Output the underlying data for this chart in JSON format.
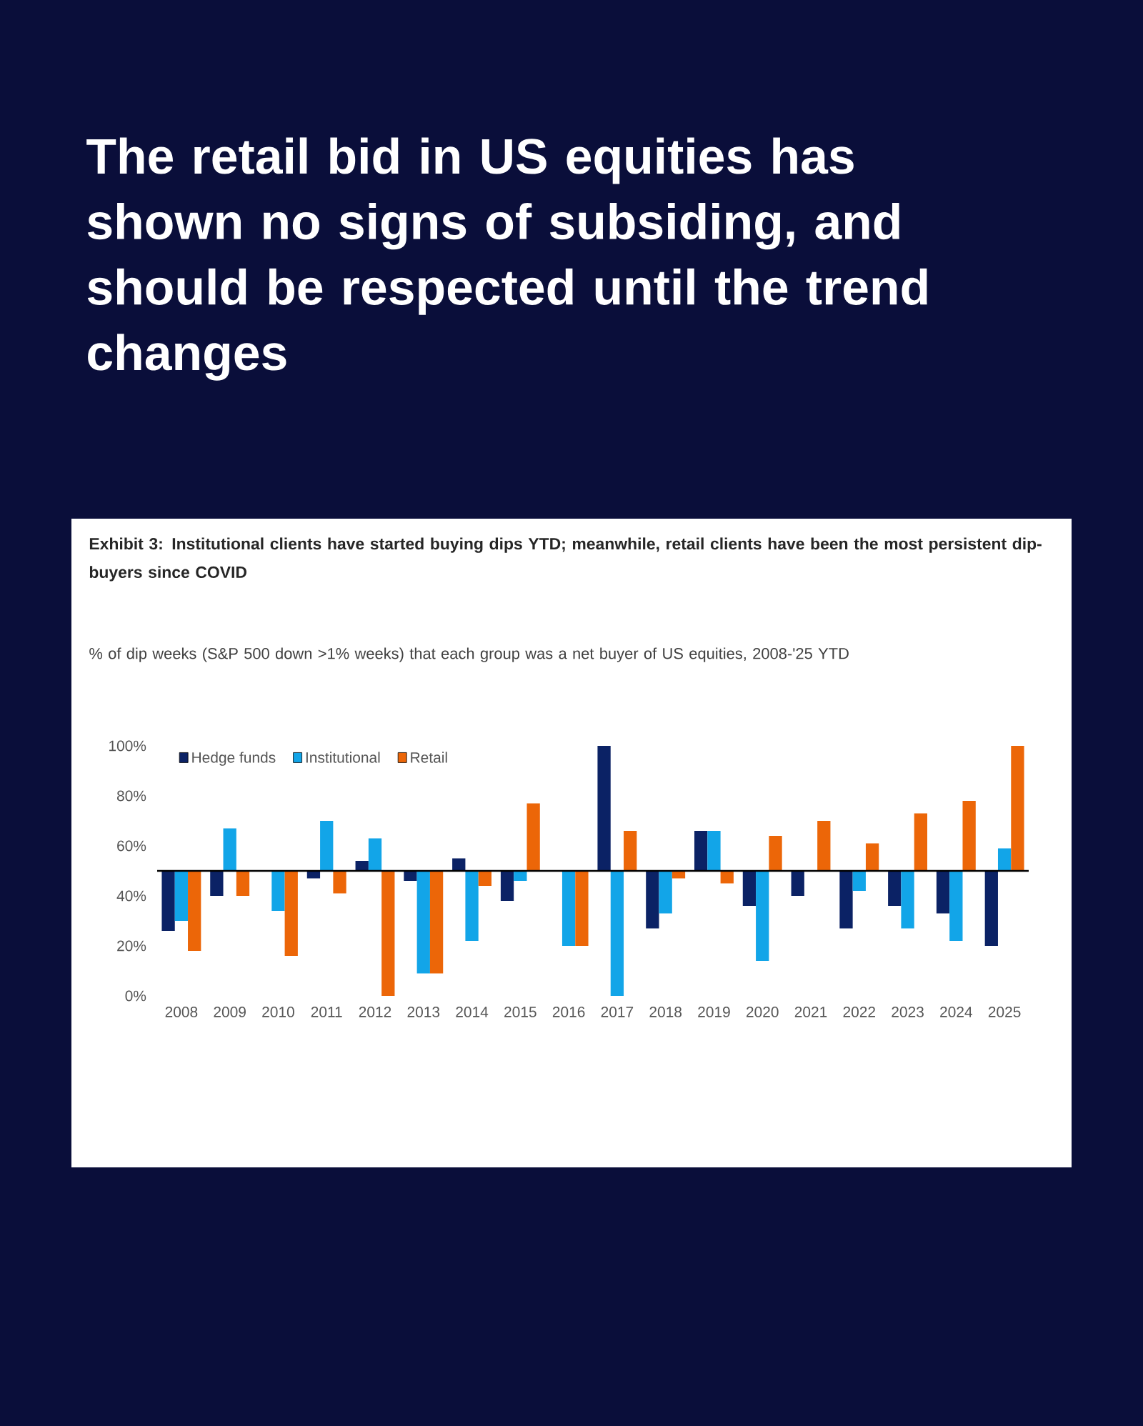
{
  "chart_data": {
    "type": "bar",
    "title": "The retail bid in US equities has shown no signs of subsiding, and should be respected until the trend changes",
    "subtitle": "Exhibit 3: Institutional clients have started buying dips YTD; meanwhile, retail clients have been the most persistent dip-buyers since COVID",
    "annotations": [
      "% of dip weeks (S&P 500 down >1% weeks) that each group was a net buyer of US equities, 2008-'25 YTD"
    ],
    "categories": [
      "2008",
      "2009",
      "2010",
      "2011",
      "2012",
      "2013",
      "2014",
      "2015",
      "2016",
      "2017",
      "2018",
      "2019",
      "2020",
      "2021",
      "2022",
      "2023",
      "2024",
      "2025"
    ],
    "series": [
      {
        "name": "Hedge funds",
        "color": "#0b2265",
        "base": [
          50,
          50,
          null,
          50,
          50,
          50,
          50,
          50,
          null,
          50,
          50,
          50,
          50,
          50,
          50,
          50,
          50,
          50
        ],
        "values": [
          -24,
          -10,
          null,
          -3,
          4,
          -4,
          5,
          -12,
          null,
          50,
          -23,
          16,
          -14,
          -10,
          -23,
          -14,
          -17,
          -30
        ]
      },
      {
        "name": "Institutional",
        "color": "#12a5e8",
        "base": [
          50,
          50,
          50,
          50,
          50,
          50,
          50,
          50,
          50,
          50,
          50,
          50,
          50,
          null,
          50,
          50,
          50,
          50
        ],
        "values": [
          -20,
          17,
          -16,
          20,
          13,
          -41,
          -28,
          -4,
          -30,
          -50,
          -17,
          16,
          -36,
          null,
          -8,
          -23,
          -28,
          9
        ]
      },
      {
        "name": "Retail",
        "color": "#ec6608",
        "base": [
          50,
          50,
          50,
          50,
          50,
          50,
          50,
          50,
          50,
          50,
          50,
          50,
          50,
          50,
          50,
          50,
          50,
          50
        ],
        "values": [
          -32,
          -10,
          -34,
          -9,
          -50,
          -41,
          -6,
          27,
          -30,
          16,
          -3,
          -5,
          14,
          20,
          11,
          23,
          28,
          50
        ]
      }
    ],
    "ylim": [
      0,
      100
    ],
    "yticks": [
      {
        "value": 0,
        "label": "0%"
      },
      {
        "value": 20,
        "label": "20%"
      },
      {
        "value": 40,
        "label": "40%"
      },
      {
        "value": 60,
        "label": "60%"
      },
      {
        "value": 80,
        "label": "80%"
      },
      {
        "value": 100,
        "label": "100%"
      }
    ],
    "ref_lines": [
      {
        "axis": "y",
        "value": 50,
        "color": "#000000"
      }
    ],
    "legend": "top left"
  }
}
